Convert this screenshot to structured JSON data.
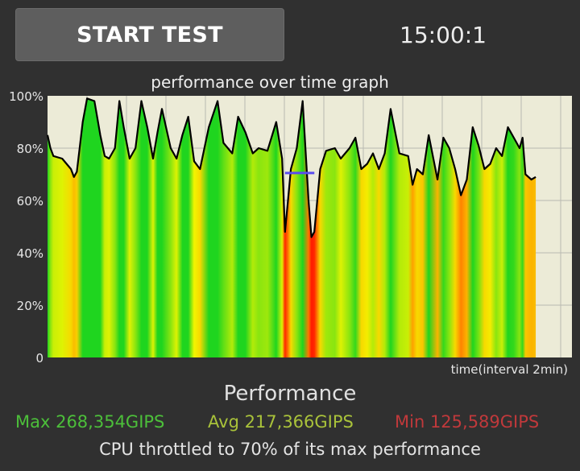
{
  "header": {
    "start_button_label": "START TEST",
    "timer": "15:00:1"
  },
  "graph": {
    "title": "performance over time graph",
    "xlabel": "time(interval 2min)"
  },
  "chart_data": {
    "type": "area",
    "title": "performance over time graph",
    "xlabel": "time(interval 2min)",
    "ylabel": "",
    "ylim": [
      0,
      100
    ],
    "yticks": [
      "0",
      "20%",
      "40%",
      "60%",
      "80%",
      "100%"
    ],
    "x_range": [
      0,
      16.6
    ],
    "grid": true,
    "colors": {
      "high": "#1fd51f",
      "mid": "#f3f500",
      "low": "#ff1500"
    },
    "throttle_marker": {
      "x": [
        8.1,
        9.1
      ],
      "y": 70.5,
      "color": "#5a4cf0"
    },
    "series": [
      {
        "x": [
          0,
          0.1,
          0.2,
          0.5,
          0.8,
          0.9,
          1.0,
          1.2,
          1.35,
          1.6,
          1.8,
          1.95,
          2.1,
          2.3,
          2.45,
          2.6,
          2.8,
          3.0,
          3.2,
          3.4,
          3.6,
          3.75,
          3.9,
          4.2,
          4.4,
          4.6,
          4.8,
          5.0,
          5.2,
          5.5,
          5.8,
          6.0,
          6.3,
          6.5,
          6.75,
          7.0,
          7.2,
          7.5,
          7.8,
          8.0,
          8.1,
          8.2,
          8.3,
          8.5,
          8.7,
          8.9,
          9.0,
          9.1,
          9.3,
          9.5,
          9.8,
          10.0,
          10.3,
          10.5,
          10.7,
          10.9,
          11.1,
          11.3,
          11.5,
          11.7,
          12.0,
          12.3,
          12.45,
          12.6,
          12.8,
          13.0,
          13.3,
          13.5,
          13.7,
          13.9,
          14.1,
          14.3,
          14.5,
          14.7,
          14.9,
          15.1,
          15.3,
          15.5,
          15.7,
          15.9,
          16.1,
          16.2,
          16.3,
          16.5,
          16.65
        ],
        "y": [
          85,
          80,
          77,
          76,
          72,
          69,
          71,
          90,
          99,
          98,
          85,
          77,
          76,
          80,
          98,
          88,
          76,
          80,
          98,
          88,
          76,
          86,
          95,
          80,
          76,
          85,
          92,
          75,
          72,
          88,
          98,
          82,
          78,
          92,
          86,
          78,
          80,
          79,
          90,
          76,
          48,
          60,
          72,
          80,
          98,
          60,
          46,
          48,
          72,
          79,
          80,
          76,
          80,
          84,
          72,
          74,
          78,
          72,
          78,
          95,
          78,
          77,
          66,
          72,
          70,
          85,
          68,
          84,
          80,
          72,
          62,
          68,
          88,
          81,
          72,
          74,
          80,
          77,
          88,
          84,
          80,
          84,
          70,
          68,
          69
        ]
      }
    ]
  },
  "performance": {
    "heading": "Performance",
    "max_label": "Max 268,354GIPS",
    "avg_label": "Avg 217,366GIPS",
    "min_label": "Min 125,589GIPS"
  },
  "throttle_message": "CPU throttled to 70% of its max performance"
}
